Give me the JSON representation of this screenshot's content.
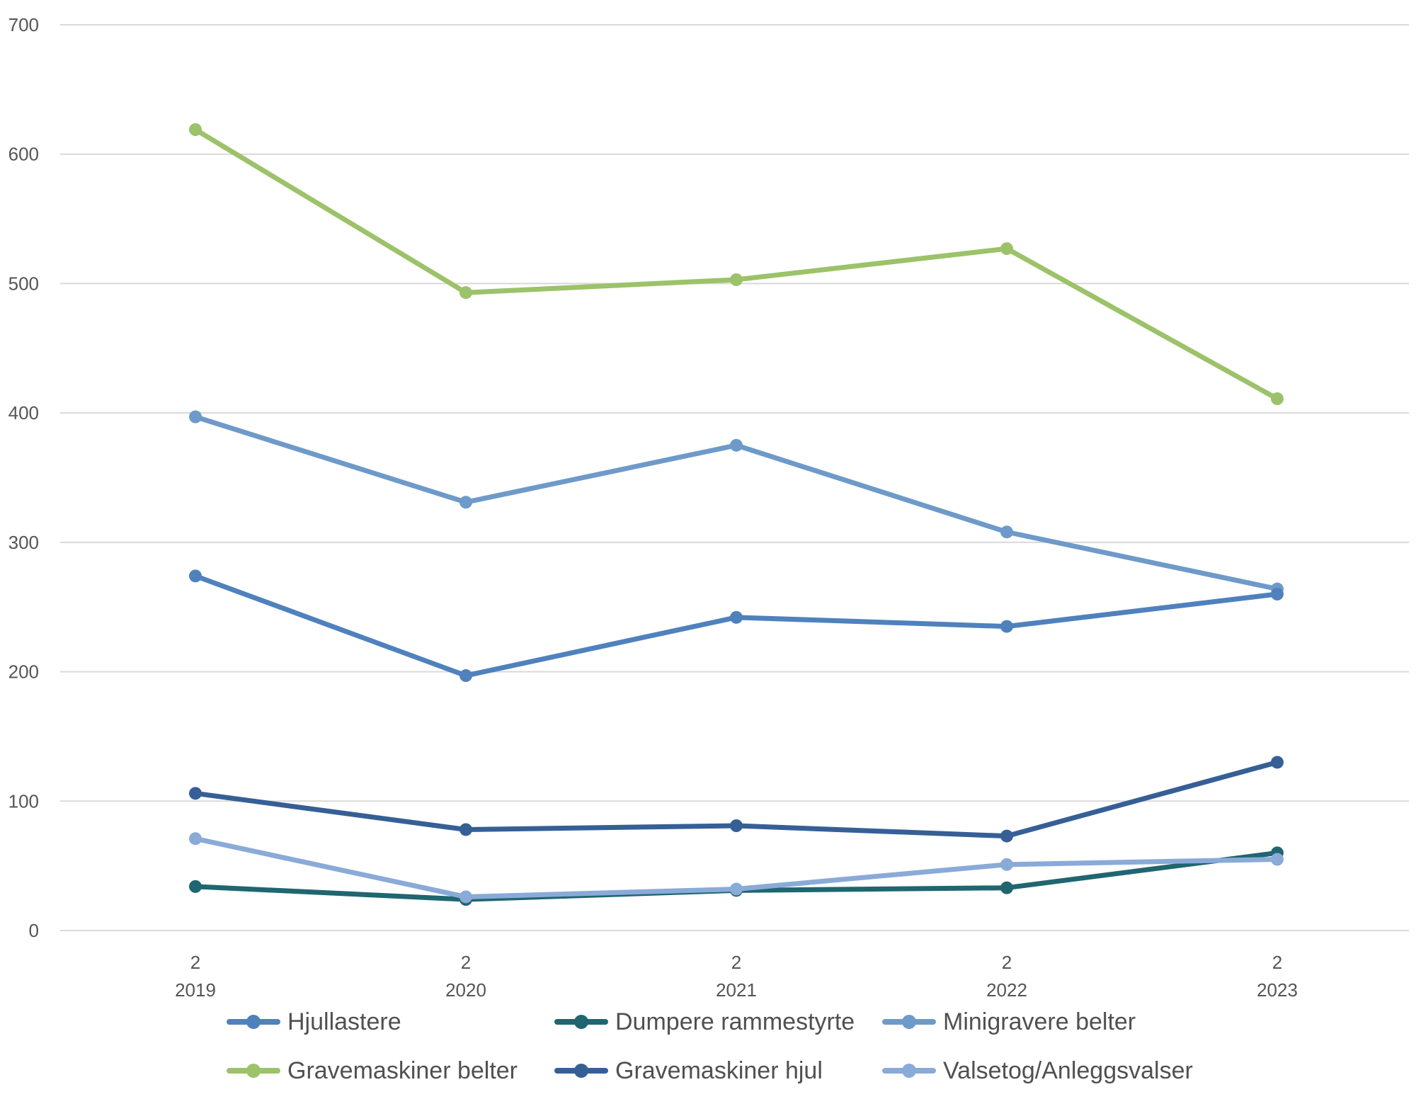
{
  "chart_data": {
    "type": "line",
    "title": "",
    "xlabel": "",
    "ylabel": "",
    "ylim": [
      0,
      700
    ],
    "yticks": [
      "0",
      "100",
      "200",
      "300",
      "400",
      "500",
      "600",
      "700"
    ],
    "categories": [
      {
        "top": "2",
        "bottom": "2019"
      },
      {
        "top": "2",
        "bottom": "2020"
      },
      {
        "top": "2",
        "bottom": "2021"
      },
      {
        "top": "2",
        "bottom": "2022"
      },
      {
        "top": "2",
        "bottom": "2023"
      }
    ],
    "grid": true,
    "legend_position": "bottom",
    "series": [
      {
        "name": "Hjullastere",
        "color": "#4F81BD",
        "values": [
          274,
          197,
          242,
          235,
          260
        ]
      },
      {
        "name": "Dumpere rammestyrte",
        "color": "#1F6670",
        "values": [
          34,
          24,
          31,
          33,
          60
        ]
      },
      {
        "name": "Minigravere belter",
        "color": "#6E9AC9",
        "values": [
          397,
          331,
          375,
          308,
          264
        ]
      },
      {
        "name": "Gravemaskiner belter",
        "color": "#9CC26A",
        "values": [
          619,
          493,
          503,
          527,
          411
        ]
      },
      {
        "name": "Gravemaskiner hjul",
        "color": "#365F96",
        "values": [
          106,
          78,
          81,
          73,
          130
        ]
      },
      {
        "name": "Valsetog/Anleggsvalser",
        "color": "#8AAAD8",
        "values": [
          71,
          26,
          32,
          51,
          55
        ]
      }
    ]
  }
}
